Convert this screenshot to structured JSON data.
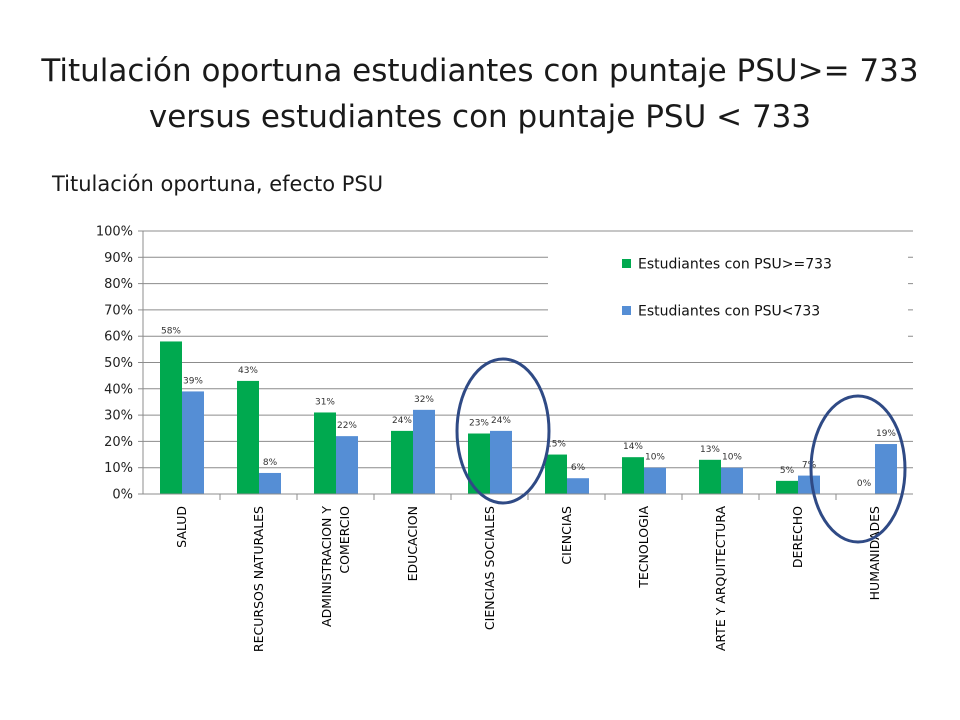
{
  "slide": {
    "title_line1": "Titulación oportuna estudiantes con puntaje PSU>= 733",
    "title_line2": "versus estudiantes con puntaje PSU < 733"
  },
  "chart_data": {
    "type": "bar",
    "title": "Titulación oportuna, efecto PSU",
    "xlabel": "",
    "ylabel": "",
    "ylim": [
      0,
      100
    ],
    "yticks": [
      "0%",
      "10%",
      "20%",
      "30%",
      "40%",
      "50%",
      "60%",
      "70%",
      "80%",
      "90%",
      "100%"
    ],
    "grid": true,
    "legend_position": "top-right",
    "categories": [
      [
        "SALUD"
      ],
      [
        "RECURSOS NATURALES"
      ],
      [
        "ADMINISTRACION Y",
        "COMERCIO"
      ],
      [
        "EDUCACION"
      ],
      [
        "CIENCIAS SOCIALES"
      ],
      [
        "CIENCIAS"
      ],
      [
        "TECNOLOGIA"
      ],
      [
        "ARTE Y ARQUITECTURA"
      ],
      [
        "DERECHO"
      ],
      [
        "HUMANIDADES"
      ]
    ],
    "series": [
      {
        "name": "Estudiantes con PSU>=733",
        "color": "#00A94F",
        "values": [
          58,
          43,
          31,
          24,
          23,
          15,
          14,
          13,
          5,
          0
        ],
        "labels": [
          "58%",
          "43%",
          "31%",
          "24%",
          "23%",
          "15%",
          "14%",
          "13%",
          "5%",
          "0%"
        ]
      },
      {
        "name": "Estudiantes con PSU<733",
        "color": "#558ED5",
        "values": [
          39,
          8,
          22,
          32,
          24,
          6,
          10,
          10,
          7,
          19
        ],
        "labels": [
          "39%",
          "8%",
          "22%",
          "32%",
          "24%",
          "6%",
          "10%",
          "10%",
          "7%",
          "19%"
        ]
      }
    ],
    "highlight_circles": [
      "CIENCIAS SOCIALES",
      "HUMANIDADES"
    ],
    "highlight_color": "#2F4A85"
  }
}
